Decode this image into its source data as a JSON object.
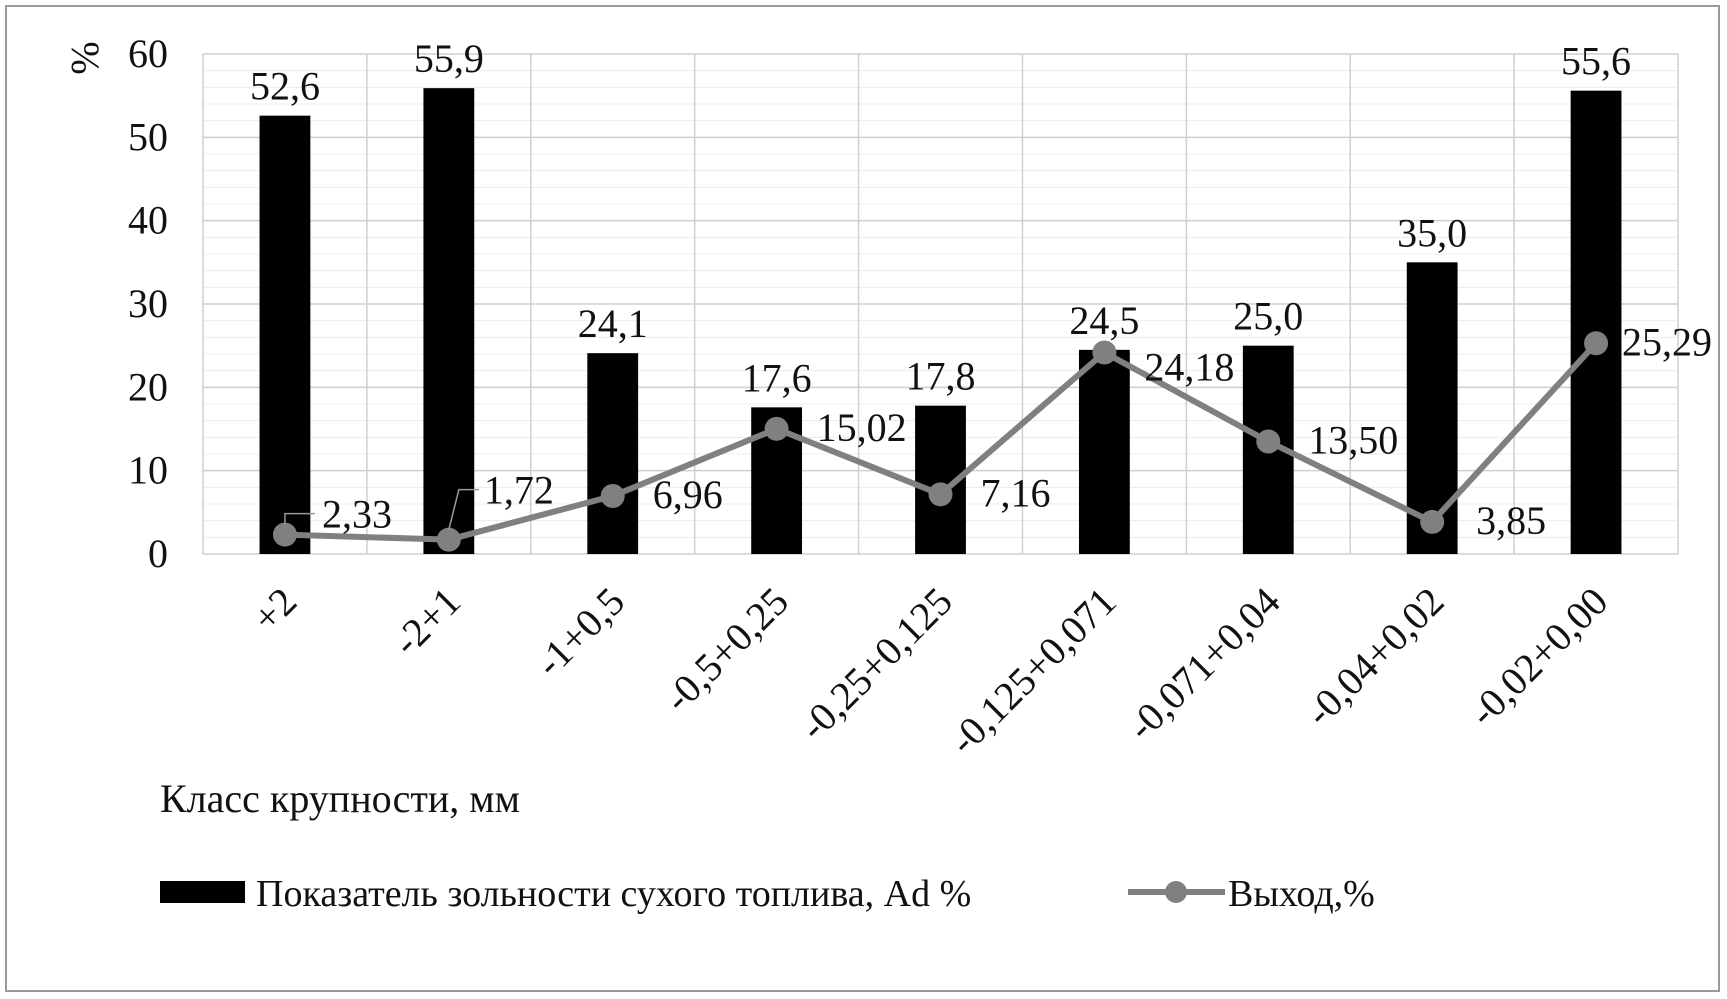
{
  "chart_data": {
    "type": "bar",
    "categories": [
      "+2",
      "-2+1",
      "-1+0,5",
      "-0,5+0,25",
      "-0,25+0,125",
      "-0,125+0,071",
      "-0,071+0,04",
      "-0,04+0,02",
      "-0,02+0,00"
    ],
    "series": [
      {
        "name": "Показатель зольности сухого топлива, Ad %",
        "type": "bar",
        "color": "#000000",
        "values": [
          52.6,
          55.9,
          24.1,
          17.6,
          17.8,
          24.5,
          25.0,
          35.0,
          55.6
        ],
        "labels": [
          "52,6",
          "55,9",
          "24,1",
          "17,6",
          "17,8",
          "24,5",
          "25,0",
          "35,0",
          "55,6"
        ]
      },
      {
        "name": "Выход,%",
        "type": "line",
        "color": "#808080",
        "values": [
          2.33,
          1.72,
          6.96,
          15.02,
          7.16,
          24.18,
          13.5,
          3.85,
          25.29
        ],
        "labels": [
          "2,33",
          "1,72",
          "6,96",
          "15,02",
          "7,16",
          "24,18",
          "13,50",
          "3,85",
          "25,29"
        ]
      }
    ],
    "xlabel": "Класс крупности,  мм",
    "ylabel": "%",
    "ylim": [
      0,
      60
    ],
    "yticks": [
      "0",
      "10",
      "20",
      "30",
      "40",
      "50",
      "60"
    ],
    "grid": true,
    "legend_position": "bottom"
  }
}
